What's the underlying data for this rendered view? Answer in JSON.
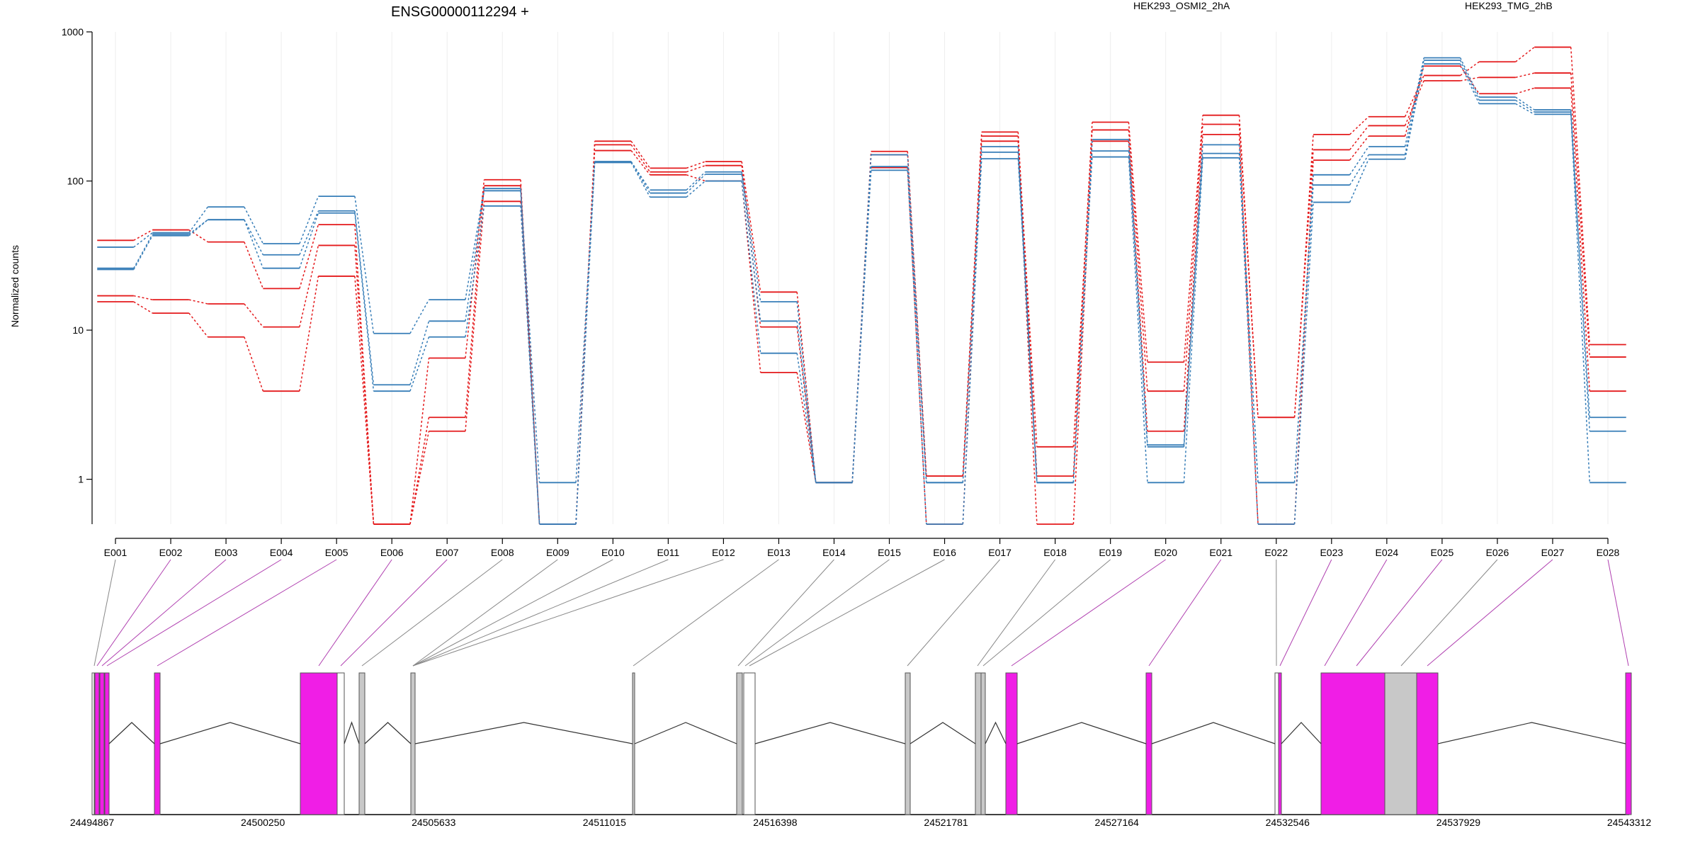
{
  "chart_data": {
    "type": "line",
    "title": "ENSG00000112294 +",
    "ylabel": "Normalized counts",
    "yscale": "log",
    "ylim": [
      0.5,
      1000
    ],
    "yticks": [
      "1",
      "10",
      "100",
      "1000"
    ],
    "categories": [
      "E001",
      "E002",
      "E003",
      "E004",
      "E005",
      "E006",
      "E007",
      "E008",
      "E009",
      "E010",
      "E011",
      "E012",
      "E013",
      "E014",
      "E015",
      "E016",
      "E017",
      "E018",
      "E019",
      "E020",
      "E021",
      "E022",
      "E023",
      "E024",
      "E025",
      "E026",
      "E027",
      "E028"
    ],
    "legend": [
      {
        "name": "HEK293_OSMI2_2hA",
        "color": "#E41A1C"
      },
      {
        "name": "HEK293_TMG_2hB",
        "color": "#377EB8"
      }
    ],
    "series": [
      {
        "group": "HEK293_OSMI2_2hA",
        "color": "#E41A1C",
        "values": [
          40,
          47,
          39,
          19,
          51,
          0.5,
          6.5,
          102,
          0.5,
          185,
          122,
          135,
          18,
          0.95,
          158,
          1.05,
          213,
          1.05,
          248,
          6.1,
          276,
          2.6,
          205,
          270,
          510,
          630,
          790,
          8
        ]
      },
      {
        "group": "HEK293_OSMI2_2hA",
        "color": "#E41A1C",
        "values": [
          17,
          16,
          15,
          10.5,
          37,
          0.5,
          2.6,
          93,
          0.5,
          175,
          115,
          127,
          10.5,
          0.95,
          150,
          1.05,
          200,
          1.65,
          220,
          3.9,
          240,
          2.6,
          162,
          235,
          470,
          495,
          530,
          6.6
        ]
      },
      {
        "group": "HEK293_OSMI2_2hA",
        "color": "#E41A1C",
        "values": [
          15.5,
          13,
          9,
          3.9,
          23,
          0.5,
          2.1,
          73,
          0.5,
          160,
          110,
          100,
          5.2,
          0.95,
          123,
          0.5,
          185,
          0.5,
          185,
          2.1,
          205,
          0.5,
          138,
          200,
          590,
          385,
          420,
          3.9
        ]
      },
      {
        "group": "HEK293_TMG_2hB",
        "color": "#377EB8",
        "values": [
          36,
          45,
          67,
          38,
          79,
          9.5,
          16,
          89,
          0.95,
          135,
          87,
          115,
          15.5,
          0.95,
          150,
          0.95,
          170,
          0.95,
          190,
          1.7,
          175,
          0.95,
          110,
          170,
          670,
          365,
          300,
          2.6
        ]
      },
      {
        "group": "HEK293_TMG_2hB",
        "color": "#377EB8",
        "values": [
          26,
          44,
          55,
          32,
          63,
          4.3,
          11.5,
          86,
          0.5,
          135,
          83,
          111,
          11.5,
          0.95,
          125,
          0.95,
          156,
          0.95,
          159,
          1.65,
          153,
          0.95,
          94,
          150,
          645,
          348,
          290,
          2.1
        ]
      },
      {
        "group": "HEK293_TMG_2hB",
        "color": "#377EB8",
        "values": [
          25.5,
          43,
          55,
          26,
          61,
          3.9,
          9,
          68,
          0.5,
          133,
          78,
          100,
          7,
          0.95,
          118,
          0.5,
          141,
          0.95,
          145,
          0.95,
          143,
          0.5,
          72,
          140,
          610,
          330,
          280,
          0.95
        ]
      }
    ],
    "gene_model": {
      "coordinate_ticks": [
        "24494867",
        "24500250",
        "24505633",
        "24511015",
        "24516398",
        "24521781",
        "24527164",
        "24532546",
        "24537929",
        "24543312"
      ],
      "highlight_color": "#F01EE6",
      "exon_color": "#C8C8C8"
    }
  }
}
